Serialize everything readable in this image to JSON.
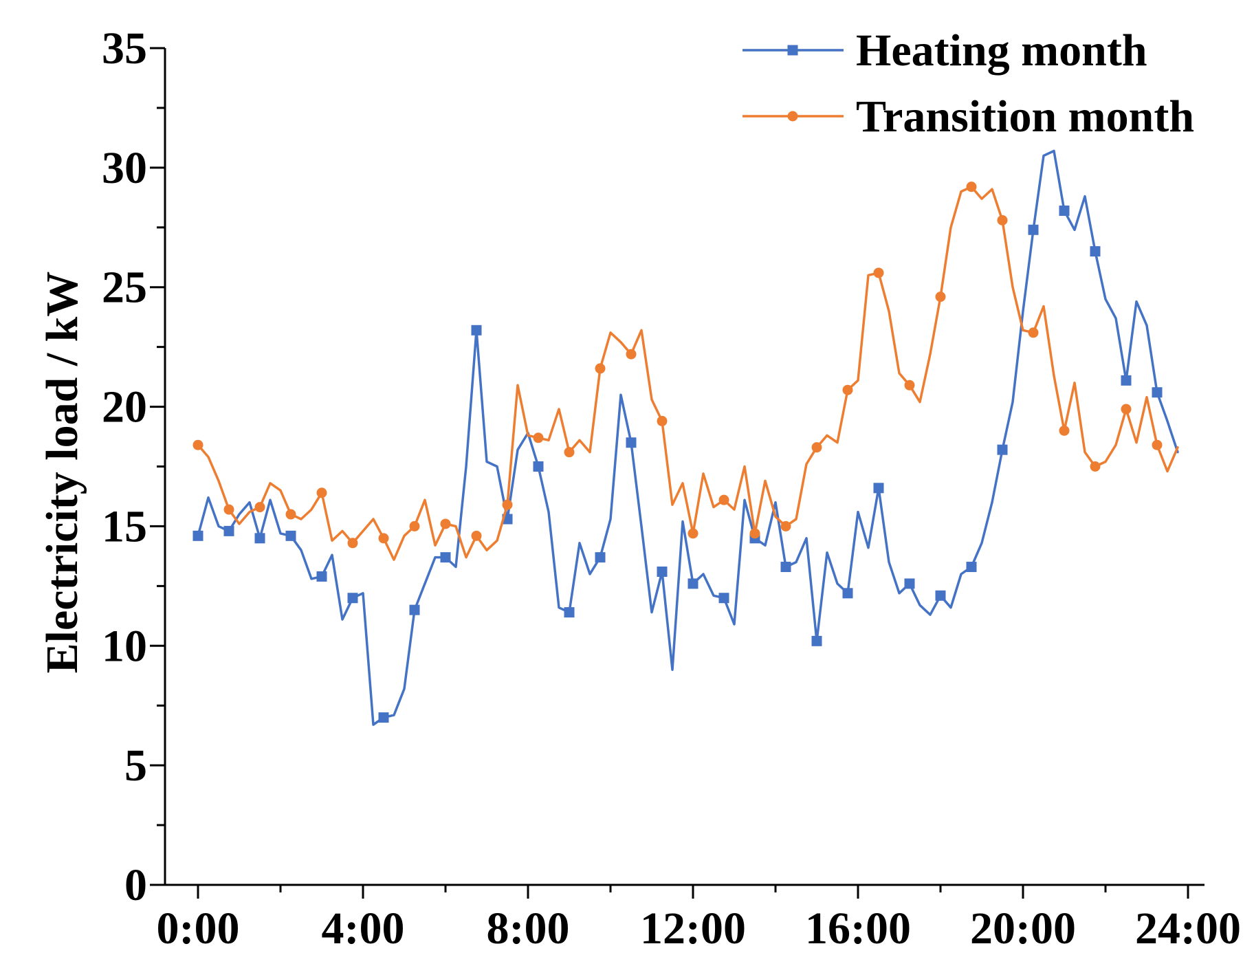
{
  "chart_data": {
    "type": "line",
    "title": "",
    "xlabel": "",
    "ylabel": "Electricity load / kW",
    "xlim": [
      -0.8,
      24.4
    ],
    "ylim": [
      0,
      35
    ],
    "x_ticks": [
      0,
      4,
      8,
      12,
      16,
      20,
      24
    ],
    "x_tick_labels": [
      "0:00",
      "4:00",
      "8:00",
      "12:00",
      "16:00",
      "20:00",
      "24:00"
    ],
    "y_ticks": [
      0,
      5,
      10,
      15,
      20,
      25,
      30,
      35
    ],
    "y_tick_labels": [
      "0",
      "5",
      "10",
      "15",
      "20",
      "25",
      "30",
      "35"
    ],
    "legend_position": "top-right",
    "series": [
      {
        "name": "Heating month",
        "color": "#4472C4",
        "marker": "square",
        "marker_every": 3,
        "x": [
          0,
          0.25,
          0.5,
          0.75,
          1,
          1.25,
          1.5,
          1.75,
          2,
          2.25,
          2.5,
          2.75,
          3,
          3.25,
          3.5,
          3.75,
          4,
          4.25,
          4.5,
          4.75,
          5,
          5.25,
          5.5,
          5.75,
          6,
          6.25,
          6.5,
          6.75,
          7,
          7.25,
          7.5,
          7.75,
          8,
          8.25,
          8.5,
          8.75,
          9,
          9.25,
          9.5,
          9.75,
          10,
          10.25,
          10.5,
          10.75,
          11,
          11.25,
          11.5,
          11.75,
          12,
          12.25,
          12.5,
          12.75,
          13,
          13.25,
          13.5,
          13.75,
          14,
          14.25,
          14.5,
          14.75,
          15,
          15.25,
          15.5,
          15.75,
          16,
          16.25,
          16.5,
          16.75,
          17,
          17.25,
          17.5,
          17.75,
          18,
          18.25,
          18.5,
          18.75,
          19,
          19.25,
          19.5,
          19.75,
          20,
          20.25,
          20.5,
          20.75,
          21,
          21.25,
          21.5,
          21.75,
          22,
          22.25,
          22.5,
          22.75,
          23,
          23.25,
          23.5,
          23.75
        ],
        "y": [
          14.6,
          16.2,
          15.0,
          14.8,
          15.5,
          16.0,
          14.5,
          16.1,
          14.7,
          14.6,
          14.0,
          12.8,
          12.9,
          13.8,
          11.1,
          12.0,
          12.2,
          6.7,
          7.0,
          7.1,
          8.2,
          11.5,
          12.6,
          13.7,
          13.7,
          13.3,
          17.5,
          23.2,
          17.7,
          17.5,
          15.3,
          18.2,
          18.9,
          17.5,
          15.6,
          11.6,
          11.4,
          14.3,
          13.0,
          13.7,
          15.3,
          20.5,
          18.5,
          15.0,
          11.4,
          13.1,
          9.0,
          15.2,
          12.6,
          13.0,
          12.1,
          12.0,
          10.9,
          16.1,
          14.5,
          14.2,
          16.0,
          13.3,
          13.5,
          14.5,
          10.2,
          13.9,
          12.6,
          12.2,
          15.6,
          14.1,
          16.6,
          13.5,
          12.2,
          12.6,
          11.7,
          11.3,
          12.1,
          11.6,
          13.0,
          13.3,
          14.3,
          16.0,
          18.2,
          20.2,
          24.0,
          27.4,
          30.5,
          30.7,
          28.2,
          27.4,
          28.8,
          26.5,
          24.5,
          23.7,
          21.1,
          24.4,
          23.4,
          20.6,
          19.4,
          18.1
        ]
      },
      {
        "name": "Transition month",
        "color": "#ED7D31",
        "marker": "circle",
        "marker_every": 3,
        "x": [
          0,
          0.25,
          0.5,
          0.75,
          1,
          1.25,
          1.5,
          1.75,
          2,
          2.25,
          2.5,
          2.75,
          3,
          3.25,
          3.5,
          3.75,
          4,
          4.25,
          4.5,
          4.75,
          5,
          5.25,
          5.5,
          5.75,
          6,
          6.25,
          6.5,
          6.75,
          7,
          7.25,
          7.5,
          7.75,
          8,
          8.25,
          8.5,
          8.75,
          9,
          9.25,
          9.5,
          9.75,
          10,
          10.25,
          10.5,
          10.75,
          11,
          11.25,
          11.5,
          11.75,
          12,
          12.25,
          12.5,
          12.75,
          13,
          13.25,
          13.5,
          13.75,
          14,
          14.25,
          14.5,
          14.75,
          15,
          15.25,
          15.5,
          15.75,
          16,
          16.25,
          16.5,
          16.75,
          17,
          17.25,
          17.5,
          17.75,
          18,
          18.25,
          18.5,
          18.75,
          19,
          19.25,
          19.5,
          19.75,
          20,
          20.25,
          20.5,
          20.75,
          21,
          21.25,
          21.5,
          21.75,
          22,
          22.25,
          22.5,
          22.75,
          23,
          23.25,
          23.5,
          23.75
        ],
        "y": [
          18.4,
          17.9,
          16.9,
          15.7,
          15.1,
          15.6,
          15.8,
          16.8,
          16.5,
          15.5,
          15.3,
          15.7,
          16.4,
          14.4,
          14.8,
          14.3,
          14.8,
          15.3,
          14.5,
          13.6,
          14.6,
          15.0,
          16.1,
          14.2,
          15.1,
          15.0,
          13.7,
          14.6,
          14.0,
          14.4,
          15.9,
          20.9,
          18.8,
          18.7,
          18.6,
          19.9,
          18.1,
          18.6,
          18.1,
          21.6,
          23.1,
          22.7,
          22.2,
          23.2,
          20.3,
          19.4,
          15.9,
          16.8,
          14.7,
          17.2,
          15.8,
          16.1,
          15.7,
          17.5,
          14.7,
          16.9,
          15.4,
          15.0,
          15.3,
          17.6,
          18.3,
          18.8,
          18.5,
          20.7,
          21.1,
          25.5,
          25.6,
          24.0,
          21.4,
          20.9,
          20.2,
          22.2,
          24.6,
          27.5,
          29.0,
          29.2,
          28.7,
          29.1,
          27.8,
          25.0,
          23.2,
          23.1,
          24.2,
          21.3,
          19.0,
          21.0,
          18.1,
          17.5,
          17.7,
          18.4,
          19.9,
          18.5,
          20.4,
          18.4,
          17.3,
          18.3
        ]
      }
    ]
  }
}
